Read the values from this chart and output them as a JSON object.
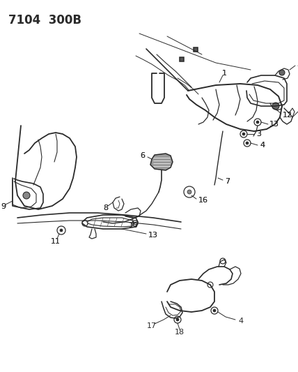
{
  "title": "7104  300B",
  "bg_color": "#f5f5f0",
  "line_color": "#2a2a2a",
  "lw_main": 1.1,
  "lw_thin": 0.7,
  "label_fontsize": 8,
  "title_fontsize": 12,
  "fig_width": 4.28,
  "fig_height": 5.33,
  "dpi": 100
}
